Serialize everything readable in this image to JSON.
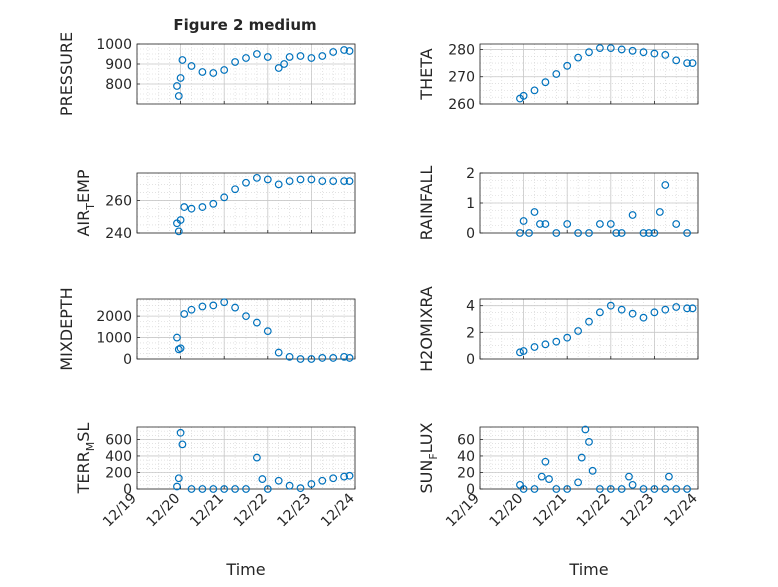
{
  "figure_title": "Figure 2 medium",
  "chart_data": [
    {
      "type": "scatter",
      "ylabel": "PRESSURE",
      "ylabel_sub": "",
      "ylim": [
        700,
        1000
      ],
      "yticks": [
        800,
        900,
        1000
      ],
      "xticks": [],
      "xlabel": "",
      "grid": true,
      "x": [
        "12/19 22:00",
        "12/19 23:00",
        "12/20 00:00",
        "12/20 01:00",
        "12/20 06:00",
        "12/20 12:00",
        "12/20 18:00",
        "12/21 00:00",
        "12/21 06:00",
        "12/21 12:00",
        "12/21 18:00",
        "12/22 00:00",
        "12/22 06:00",
        "12/22 09:00",
        "12/22 12:00",
        "12/22 18:00",
        "12/23 00:00",
        "12/23 06:00",
        "12/23 12:00",
        "12/23 18:00",
        "12/23 21:00"
      ],
      "y": [
        790,
        740,
        830,
        920,
        890,
        860,
        855,
        870,
        910,
        930,
        950,
        935,
        880,
        900,
        935,
        940,
        930,
        940,
        960,
        970,
        965
      ],
      "color": "#0072bd"
    },
    {
      "type": "scatter",
      "ylabel": "THETA",
      "ylabel_sub": "",
      "ylim": [
        260,
        282
      ],
      "yticks": [
        260,
        270,
        280
      ],
      "xticks": [],
      "xlabel": "",
      "grid": true,
      "x": [
        "12/19 22:00",
        "12/20 00:00",
        "12/20 06:00",
        "12/20 12:00",
        "12/20 18:00",
        "12/21 00:00",
        "12/21 06:00",
        "12/21 12:00",
        "12/21 18:00",
        "12/22 00:00",
        "12/22 06:00",
        "12/22 12:00",
        "12/22 18:00",
        "12/23 00:00",
        "12/23 06:00",
        "12/23 12:00",
        "12/23 18:00",
        "12/23 21:00"
      ],
      "y": [
        262,
        263,
        265,
        268,
        271,
        274,
        277,
        279,
        280.5,
        280.5,
        280,
        279.5,
        279,
        278.5,
        278,
        276,
        275,
        275
      ],
      "color": "#0072bd"
    },
    {
      "type": "scatter",
      "ylabel": "AIR",
      "ylabel_sub": "T",
      "ylabel_tail": "EMP",
      "ylim": [
        240,
        277
      ],
      "yticks": [
        240,
        260
      ],
      "xticks": [],
      "xlabel": "",
      "grid": true,
      "x": [
        "12/19 22:00",
        "12/19 23:00",
        "12/20 00:00",
        "12/20 02:00",
        "12/20 06:00",
        "12/20 12:00",
        "12/20 18:00",
        "12/21 00:00",
        "12/21 06:00",
        "12/21 12:00",
        "12/21 18:00",
        "12/22 00:00",
        "12/22 06:00",
        "12/22 12:00",
        "12/22 18:00",
        "12/23 00:00",
        "12/23 06:00",
        "12/23 12:00",
        "12/23 18:00",
        "12/23 21:00"
      ],
      "y": [
        246,
        241,
        248,
        256,
        255,
        256,
        258,
        262,
        267,
        271,
        274,
        273,
        270,
        272,
        273,
        273,
        272,
        272,
        272,
        272
      ],
      "color": "#0072bd"
    },
    {
      "type": "scatter",
      "ylabel": "RAINFALL",
      "ylabel_sub": "",
      "ylim": [
        0,
        2
      ],
      "yticks": [
        0,
        1,
        2
      ],
      "xticks": [],
      "xlabel": "",
      "grid": true,
      "x": [
        "12/19 22:00",
        "12/20 00:00",
        "12/20 03:00",
        "12/20 06:00",
        "12/20 09:00",
        "12/20 12:00",
        "12/20 18:00",
        "12/21 00:00",
        "12/21 06:00",
        "12/21 12:00",
        "12/21 18:00",
        "12/22 00:00",
        "12/22 03:00",
        "12/22 06:00",
        "12/22 12:00",
        "12/22 18:00",
        "12/22 21:00",
        "12/23 00:00",
        "12/23 03:00",
        "12/23 06:00",
        "12/23 12:00",
        "12/23 18:00"
      ],
      "y": [
        0,
        0.4,
        0,
        0.7,
        0.3,
        0.3,
        0,
        0.3,
        0,
        0,
        0.3,
        0.3,
        0,
        0,
        0.6,
        0,
        0,
        0,
        0.7,
        1.6,
        0.3,
        0
      ],
      "color": "#0072bd"
    },
    {
      "type": "scatter",
      "ylabel": "MIXDEPTH",
      "ylabel_sub": "",
      "ylim": [
        0,
        2800
      ],
      "yticks": [
        0,
        1000,
        2000
      ],
      "xticks": [],
      "xlabel": "",
      "grid": true,
      "x": [
        "12/19 22:00",
        "12/19 23:00",
        "12/20 00:00",
        "12/20 02:00",
        "12/20 06:00",
        "12/20 12:00",
        "12/20 18:00",
        "12/21 00:00",
        "12/21 06:00",
        "12/21 12:00",
        "12/21 18:00",
        "12/22 00:00",
        "12/22 06:00",
        "12/22 12:00",
        "12/22 18:00",
        "12/23 00:00",
        "12/23 06:00",
        "12/23 12:00",
        "12/23 18:00",
        "12/23 21:00"
      ],
      "y": [
        1000,
        450,
        500,
        2100,
        2300,
        2450,
        2500,
        2650,
        2400,
        2000,
        1700,
        1300,
        300,
        100,
        0,
        0,
        50,
        50,
        100,
        50
      ],
      "color": "#0072bd"
    },
    {
      "type": "scatter",
      "ylabel": "H2OMIXRA",
      "ylabel_sub": "",
      "ylim": [
        0,
        4.5
      ],
      "yticks": [
        0,
        2,
        4
      ],
      "xticks": [],
      "xlabel": "",
      "grid": true,
      "x": [
        "12/19 22:00",
        "12/20 00:00",
        "12/20 06:00",
        "12/20 12:00",
        "12/20 18:00",
        "12/21 00:00",
        "12/21 06:00",
        "12/21 12:00",
        "12/21 18:00",
        "12/22 00:00",
        "12/22 06:00",
        "12/22 12:00",
        "12/22 18:00",
        "12/23 00:00",
        "12/23 06:00",
        "12/23 12:00",
        "12/23 18:00",
        "12/23 21:00"
      ],
      "y": [
        0.5,
        0.6,
        0.9,
        1.1,
        1.3,
        1.6,
        2.1,
        2.8,
        3.5,
        4.0,
        3.7,
        3.4,
        3.1,
        3.5,
        3.7,
        3.9,
        3.8,
        3.8
      ],
      "color": "#0072bd"
    },
    {
      "type": "scatter",
      "ylabel": "TERR",
      "ylabel_sub": "M",
      "ylabel_tail": "SL",
      "ylim": [
        0,
        750
      ],
      "yticks": [
        0,
        200,
        400,
        600
      ],
      "xticks": [
        "12/19",
        "12/20",
        "12/21",
        "12/22",
        "12/23",
        "12/24"
      ],
      "xlabel": "Time",
      "grid": true,
      "x": [
        "12/19 22:00",
        "12/19 23:00",
        "12/20 00:00",
        "12/20 01:00",
        "12/20 06:00",
        "12/20 12:00",
        "12/20 18:00",
        "12/21 00:00",
        "12/21 06:00",
        "12/21 12:00",
        "12/21 18:00",
        "12/21 21:00",
        "12/22 00:00",
        "12/22 06:00",
        "12/22 12:00",
        "12/22 18:00",
        "12/23 00:00",
        "12/23 06:00",
        "12/23 12:00",
        "12/23 18:00",
        "12/23 21:00"
      ],
      "y": [
        30,
        130,
        680,
        540,
        0,
        0,
        0,
        0,
        0,
        0,
        380,
        120,
        0,
        100,
        40,
        10,
        60,
        100,
        130,
        150,
        160
      ],
      "color": "#0072bd"
    },
    {
      "type": "scatter",
      "ylabel": "SUN",
      "ylabel_sub": "F",
      "ylabel_tail": "LUX",
      "ylim": [
        0,
        75
      ],
      "yticks": [
        0,
        20,
        40,
        60
      ],
      "xticks": [
        "12/19",
        "12/20",
        "12/21",
        "12/22",
        "12/23",
        "12/24"
      ],
      "xlabel": "Time",
      "grid": true,
      "x": [
        "12/19 22:00",
        "12/20 00:00",
        "12/20 06:00",
        "12/20 10:00",
        "12/20 12:00",
        "12/20 14:00",
        "12/20 18:00",
        "12/21 00:00",
        "12/21 06:00",
        "12/21 08:00",
        "12/21 10:00",
        "12/21 12:00",
        "12/21 14:00",
        "12/21 18:00",
        "12/22 00:00",
        "12/22 06:00",
        "12/22 10:00",
        "12/22 12:00",
        "12/22 18:00",
        "12/23 00:00",
        "12/23 06:00",
        "12/23 08:00",
        "12/23 12:00",
        "12/23 18:00"
      ],
      "y": [
        5,
        0,
        0,
        15,
        33,
        12,
        0,
        0,
        8,
        38,
        72,
        57,
        22,
        0,
        0,
        0,
        15,
        5,
        0,
        0,
        0,
        15,
        0,
        0
      ],
      "color": "#0072bd"
    }
  ]
}
